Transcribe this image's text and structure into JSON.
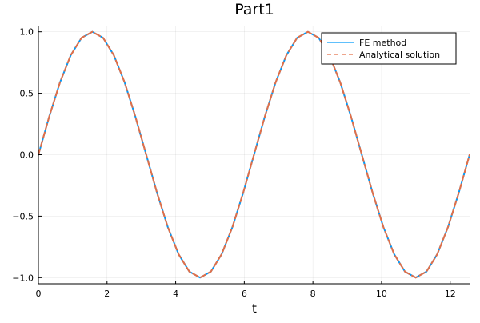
{
  "chart_data": {
    "type": "line",
    "title": "Part1",
    "xlabel": "t",
    "ylabel": "",
    "xlim": [
      0,
      12.566
    ],
    "ylim": [
      -1.05,
      1.05
    ],
    "x_ticks": [
      0,
      2,
      4,
      6,
      8,
      10,
      12
    ],
    "x_tick_labels": [
      "0",
      "2",
      "4",
      "6",
      "8",
      "10",
      "12"
    ],
    "y_ticks": [
      -1.0,
      -0.5,
      0.0,
      0.5,
      1.0
    ],
    "y_tick_labels": [
      "−1.0",
      "−0.5",
      "0.0",
      "0.5",
      "1.0"
    ],
    "grid": true,
    "legend_position": "top-right",
    "x": [
      0,
      0.314,
      0.628,
      0.942,
      1.257,
      1.571,
      1.885,
      2.199,
      2.513,
      2.827,
      3.142,
      3.456,
      3.77,
      4.084,
      4.398,
      4.712,
      5.027,
      5.341,
      5.655,
      5.969,
      6.283,
      6.597,
      6.912,
      7.226,
      7.54,
      7.854,
      8.168,
      8.482,
      8.796,
      9.111,
      9.425,
      9.739,
      10.053,
      10.367,
      10.681,
      10.996,
      11.31,
      11.624,
      11.938,
      12.252,
      12.566
    ],
    "series": [
      {
        "name": "FE method",
        "color": "#009AFA",
        "style": "solid",
        "values": [
          0,
          0.309,
          0.588,
          0.809,
          0.951,
          1.0,
          0.951,
          0.809,
          0.588,
          0.309,
          0,
          -0.309,
          -0.588,
          -0.809,
          -0.951,
          -1.0,
          -0.951,
          -0.809,
          -0.588,
          -0.309,
          0,
          0.309,
          0.588,
          0.809,
          0.951,
          1.0,
          0.951,
          0.809,
          0.588,
          0.309,
          0,
          -0.309,
          -0.588,
          -0.809,
          -0.951,
          -1.0,
          -0.951,
          -0.809,
          -0.588,
          -0.309,
          0
        ]
      },
      {
        "name": "Analytical solution",
        "color": "#E36F47",
        "style": "dashed",
        "values": [
          0,
          0.309,
          0.588,
          0.809,
          0.951,
          1.0,
          0.951,
          0.809,
          0.588,
          0.309,
          0,
          -0.309,
          -0.588,
          -0.809,
          -0.951,
          -1.0,
          -0.951,
          -0.809,
          -0.588,
          -0.309,
          0,
          0.309,
          0.588,
          0.809,
          0.951,
          1.0,
          0.951,
          0.809,
          0.588,
          0.309,
          0,
          -0.309,
          -0.588,
          -0.809,
          -0.951,
          -1.0,
          -0.951,
          -0.809,
          -0.588,
          -0.309,
          0
        ]
      }
    ]
  }
}
